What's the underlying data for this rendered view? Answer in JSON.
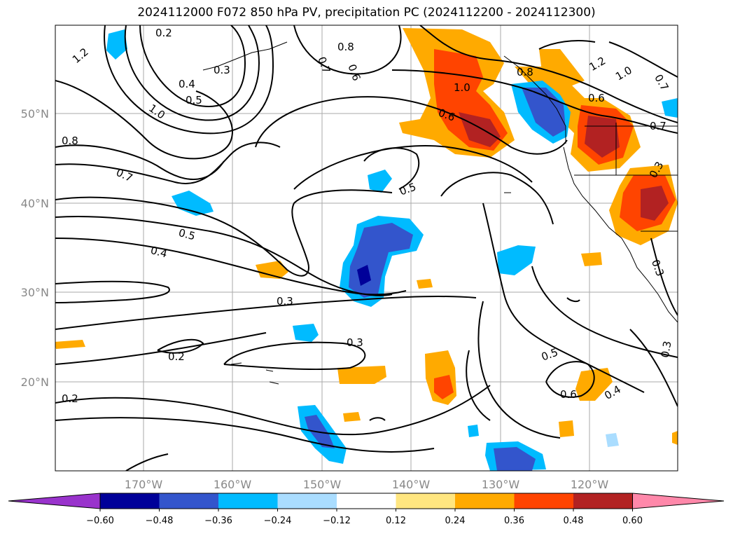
{
  "title": "2024112000 F072 850 hPa PV, precipitation PC (2024112200 - 2024112300)",
  "map": {
    "lat_labels": [
      "50°N",
      "40°N",
      "30°N",
      "20°N"
    ],
    "lon_labels": [
      "170°W",
      "160°W",
      "150°W",
      "140°W",
      "130°W",
      "120°W"
    ],
    "contour_labels": [
      "1.2",
      "0.8",
      "0.7",
      "1.0",
      "0.5",
      "0.4",
      "0.3",
      "0.2",
      "0.6",
      "0.8",
      "0.6",
      "0.7",
      "0.5",
      "0.4",
      "0.3",
      "0.2",
      "0.2",
      "0.3",
      "0.5",
      "0.6",
      "0.4",
      "0.5",
      "1.2",
      "1.0",
      "0.8",
      "0.7",
      "1.0",
      "0.6",
      "0.7",
      "0.3",
      "0.3",
      "0.3"
    ]
  },
  "colorbar": {
    "ticks": [
      "−0.60",
      "−0.48",
      "−0.36",
      "−0.24",
      "−0.12",
      "0.12",
      "0.24",
      "0.36",
      "0.48",
      "0.60"
    ],
    "colors": [
      "#9933cc",
      "#000099",
      "#3355cc",
      "#00bbff",
      "#aaddff",
      "#ffffff",
      "#ffe680",
      "#ffaa00",
      "#ff4400",
      "#b22222",
      "#ff88aa"
    ]
  }
}
